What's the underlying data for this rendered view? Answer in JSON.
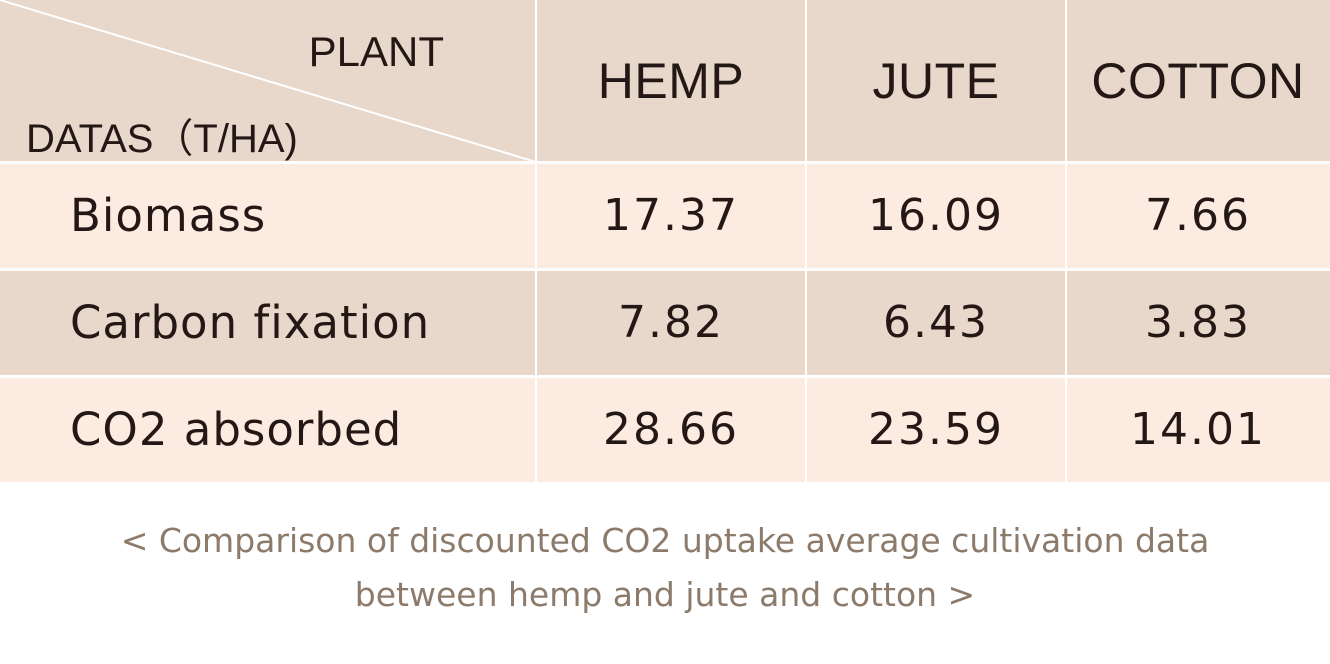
{
  "table": {
    "corner_top": "PLANT",
    "corner_bottom": "DATAS（T/HA)",
    "columns": [
      "HEMP",
      "JUTE",
      "COTTON"
    ],
    "rows": [
      {
        "label": "Biomass",
        "values": [
          "17.37",
          "16.09",
          "7.66"
        ]
      },
      {
        "label": "Carbon fixation",
        "values": [
          "7.82",
          "6.43",
          "3.83"
        ]
      },
      {
        "label": "CO2 absorbed",
        "values": [
          "28.66",
          "23.59",
          "14.01"
        ]
      }
    ]
  },
  "caption": {
    "line1": "< Comparison of discounted CO2 uptake average cultivation data",
    "line2": "between hemp and jute and cotton >"
  },
  "colors": {
    "header_bg": "#e8d7cb",
    "row_light_bg": "#fcebe1",
    "text": "#231815",
    "caption": "#8c7b6b"
  }
}
